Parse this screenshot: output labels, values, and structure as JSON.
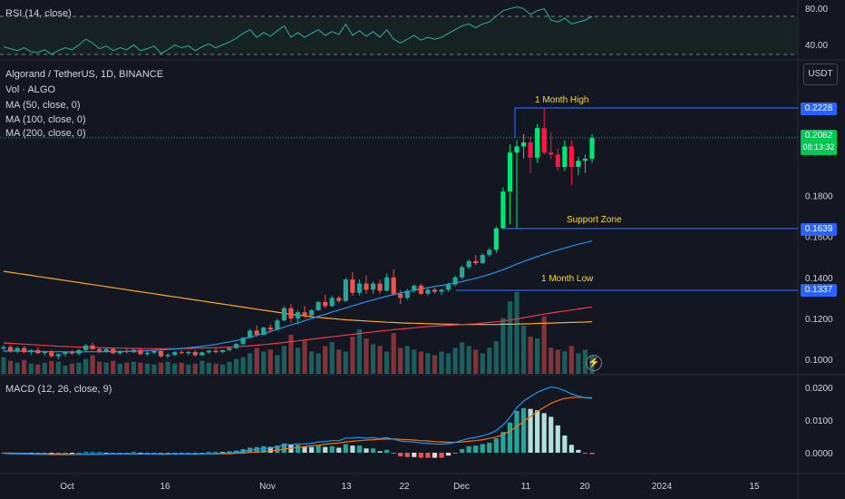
{
  "rsi": {
    "label": "RSI (14, close)",
    "ticks": [
      "80.00",
      "40.00"
    ]
  },
  "price": {
    "title": "Algorand / TetherUS, 1D, BINANCE",
    "legend": [
      "Vol · ALGO",
      "MA (50, close, 0)",
      "MA (100, close, 0)",
      "MA (200, close, 0)"
    ],
    "ticks": [
      "0.1800",
      "0.1600",
      "0.1400",
      "0.1200",
      "0.1000"
    ],
    "currency": "USDT",
    "annotations": [
      {
        "text": "1 Month High",
        "value": "0.2228",
        "price": 0.2228
      },
      {
        "text": "Support Zone",
        "value": "0.1639",
        "price": 0.1639
      },
      {
        "text": "1 Month Low",
        "value": "0.1337",
        "price": 0.1337
      }
    ],
    "current": {
      "value": "0.2082",
      "countdown": "08:13:32"
    }
  },
  "macd": {
    "label": "MACD (12, 26, close, 9)",
    "ticks": [
      "0.0200",
      "0.0100",
      "0.0000"
    ]
  },
  "time_axis": [
    "Oct",
    "16",
    "Nov",
    "13",
    "22",
    "Dec",
    "11",
    "20",
    "2024",
    "15"
  ],
  "colors": {
    "up": "#26a69a",
    "down": "#ef5350",
    "upBright": "#00e676",
    "downBright": "#ff1744",
    "tag": "#2962ff",
    "ma50": "#2196f3",
    "ma100": "#f23645",
    "ma200": "#ffa726",
    "macd": "#2196f3",
    "signal": "#ff6d00"
  },
  "chart_data": {
    "type": "candlestick",
    "ohlc_note": "approximate daily candles, ALGO/USDT",
    "candles": [
      [
        0.1052,
        0.107,
        0.104,
        0.106
      ],
      [
        0.106,
        0.1068,
        0.1032,
        0.104
      ],
      [
        0.104,
        0.1062,
        0.1028,
        0.1055
      ],
      [
        0.1055,
        0.1066,
        0.103,
        0.1035
      ],
      [
        0.1035,
        0.105,
        0.102,
        0.1045
      ],
      [
        0.1045,
        0.1058,
        0.1025,
        0.103
      ],
      [
        0.103,
        0.1042,
        0.1015,
        0.1038
      ],
      [
        0.1038,
        0.1046,
        0.1008,
        0.1015
      ],
      [
        0.1015,
        0.103,
        0.1,
        0.1025
      ],
      [
        0.1025,
        0.104,
        0.1012,
        0.1036
      ],
      [
        0.1036,
        0.1046,
        0.102,
        0.1028
      ],
      [
        0.1028,
        0.105,
        0.1018,
        0.1045
      ],
      [
        0.1045,
        0.1075,
        0.104,
        0.1068
      ],
      [
        0.1068,
        0.1082,
        0.1045,
        0.105
      ],
      [
        0.105,
        0.106,
        0.103,
        0.104
      ],
      [
        0.104,
        0.1055,
        0.103,
        0.105
      ],
      [
        0.105,
        0.1058,
        0.1025,
        0.103
      ],
      [
        0.103,
        0.1045,
        0.102,
        0.104
      ],
      [
        0.104,
        0.1052,
        0.1028,
        0.1035
      ],
      [
        0.1035,
        0.105,
        0.103,
        0.1046
      ],
      [
        0.1046,
        0.1052,
        0.102,
        0.1025
      ],
      [
        0.1025,
        0.1038,
        0.1015,
        0.1032
      ],
      [
        0.1032,
        0.1045,
        0.1025,
        0.104
      ],
      [
        0.104,
        0.1048,
        0.1008,
        0.1015
      ],
      [
        0.1015,
        0.103,
        0.1005,
        0.1022
      ],
      [
        0.1022,
        0.104,
        0.1015,
        0.1035
      ],
      [
        0.1035,
        0.1045,
        0.1025,
        0.103
      ],
      [
        0.103,
        0.1042,
        0.1018,
        0.1036
      ],
      [
        0.1036,
        0.1044,
        0.1012,
        0.102
      ],
      [
        0.102,
        0.1038,
        0.1015,
        0.1034
      ],
      [
        0.1034,
        0.1046,
        0.1026,
        0.1042
      ],
      [
        0.1042,
        0.1055,
        0.103,
        0.1035
      ],
      [
        0.1035,
        0.1048,
        0.103,
        0.1045
      ],
      [
        0.1045,
        0.106,
        0.1038,
        0.1055
      ],
      [
        0.1055,
        0.108,
        0.105,
        0.1075
      ],
      [
        0.1075,
        0.111,
        0.107,
        0.1105
      ],
      [
        0.1105,
        0.115,
        0.11,
        0.114
      ],
      [
        0.114,
        0.1165,
        0.111,
        0.112
      ],
      [
        0.112,
        0.116,
        0.1115,
        0.1155
      ],
      [
        0.1155,
        0.117,
        0.113,
        0.1145
      ],
      [
        0.1145,
        0.12,
        0.114,
        0.119
      ],
      [
        0.119,
        0.126,
        0.1185,
        0.125
      ],
      [
        0.125,
        0.127,
        0.118,
        0.12
      ],
      [
        0.12,
        0.124,
        0.117,
        0.123
      ],
      [
        0.123,
        0.126,
        0.12,
        0.1215
      ],
      [
        0.1215,
        0.1245,
        0.121,
        0.124
      ],
      [
        0.124,
        0.1285,
        0.1235,
        0.128
      ],
      [
        0.128,
        0.1315,
        0.125,
        0.126
      ],
      [
        0.126,
        0.131,
        0.1255,
        0.13
      ],
      [
        0.13,
        0.131,
        0.1275,
        0.1285
      ],
      [
        0.1285,
        0.14,
        0.128,
        0.139
      ],
      [
        0.139,
        0.1425,
        0.131,
        0.1325
      ],
      [
        0.1325,
        0.139,
        0.131,
        0.137
      ],
      [
        0.137,
        0.141,
        0.132,
        0.134
      ],
      [
        0.134,
        0.138,
        0.132,
        0.137
      ],
      [
        0.137,
        0.139,
        0.132,
        0.1335
      ],
      [
        0.1335,
        0.142,
        0.133,
        0.14
      ],
      [
        0.14,
        0.144,
        0.131,
        0.132
      ],
      [
        0.132,
        0.134,
        0.127,
        0.13
      ],
      [
        0.13,
        0.1345,
        0.129,
        0.1335
      ],
      [
        0.1335,
        0.1365,
        0.1325,
        0.136
      ],
      [
        0.136,
        0.137,
        0.1315,
        0.132
      ],
      [
        0.132,
        0.1345,
        0.131,
        0.134
      ],
      [
        0.134,
        0.135,
        0.132,
        0.133
      ],
      [
        0.133,
        0.1345,
        0.1315,
        0.134
      ],
      [
        0.134,
        0.1375,
        0.133,
        0.1365
      ],
      [
        0.1365,
        0.141,
        0.1355,
        0.14
      ],
      [
        0.14,
        0.146,
        0.139,
        0.145
      ],
      [
        0.145,
        0.149,
        0.144,
        0.148
      ],
      [
        0.148,
        0.151,
        0.146,
        0.147
      ],
      [
        0.147,
        0.152,
        0.1465,
        0.151
      ],
      [
        0.151,
        0.1545,
        0.15,
        0.1535
      ],
      [
        0.1535,
        0.165,
        0.152,
        0.164
      ],
      [
        0.164,
        0.184,
        0.1635,
        0.182
      ],
      [
        0.182,
        0.205,
        0.166,
        0.201
      ],
      [
        0.201,
        0.207,
        0.164,
        0.204
      ],
      [
        0.204,
        0.21,
        0.198,
        0.206
      ],
      [
        0.206,
        0.209,
        0.191,
        0.1985
      ],
      [
        0.1985,
        0.215,
        0.196,
        0.213
      ],
      [
        0.213,
        0.2228,
        0.2,
        0.201
      ],
      [
        0.201,
        0.211,
        0.198,
        0.2
      ],
      [
        0.2,
        0.203,
        0.192,
        0.194
      ],
      [
        0.194,
        0.207,
        0.192,
        0.204
      ],
      [
        0.204,
        0.207,
        0.185,
        0.194
      ],
      [
        0.194,
        0.199,
        0.19,
        0.197
      ],
      [
        0.197,
        0.2,
        0.191,
        0.198
      ],
      [
        0.198,
        0.21,
        0.196,
        0.2082
      ]
    ],
    "volume": [
      18,
      14,
      12,
      15,
      11,
      10,
      12,
      14,
      13,
      9,
      11,
      12,
      16,
      20,
      13,
      12,
      14,
      11,
      12,
      13,
      12,
      11,
      10,
      12,
      13,
      11,
      12,
      10,
      11,
      14,
      12,
      11,
      10,
      13,
      16,
      18,
      22,
      28,
      24,
      26,
      20,
      30,
      42,
      28,
      36,
      24,
      22,
      30,
      34,
      26,
      24,
      40,
      48,
      38,
      32,
      30,
      24,
      44,
      28,
      30,
      26,
      24,
      22,
      20,
      24,
      22,
      28,
      34,
      30,
      26,
      22,
      28,
      35,
      60,
      78,
      88,
      52,
      40,
      38,
      62,
      28,
      26,
      24,
      30,
      22,
      26,
      20
    ],
    "ma50": [
      0.104,
      0.104,
      0.104,
      0.1039,
      0.1039,
      0.1038,
      0.1038,
      0.1037,
      0.1037,
      0.1036,
      0.1036,
      0.1036,
      0.1037,
      0.1037,
      0.1037,
      0.1038,
      0.1038,
      0.1038,
      0.1039,
      0.104,
      0.1041,
      0.1042,
      0.1044,
      0.1046,
      0.1048,
      0.105,
      0.1053,
      0.1056,
      0.106,
      0.1064,
      0.1068,
      0.1073,
      0.1079,
      0.1085,
      0.1092,
      0.11,
      0.1108,
      0.1117,
      0.1126,
      0.1136,
      0.1146,
      0.1157,
      0.1168,
      0.1178,
      0.1189,
      0.1199,
      0.121,
      0.122,
      0.1231,
      0.1241,
      0.1251,
      0.1261,
      0.1271,
      0.1281,
      0.129,
      0.1299,
      0.1308,
      0.1316,
      0.1324,
      0.1331,
      0.1338,
      0.1344,
      0.135,
      0.1356,
      0.1361,
      0.1367,
      0.1373,
      0.138,
      0.1388,
      0.1396,
      0.1405,
      0.1415,
      0.1426,
      0.1438,
      0.1451,
      0.1465,
      0.1478,
      0.149,
      0.1502,
      0.1513,
      0.1524,
      0.1534,
      0.1544,
      0.1553,
      0.1562,
      0.157,
      0.1578
    ],
    "ma100": [
      0.108,
      0.1078,
      0.1076,
      0.1074,
      0.1072,
      0.107,
      0.1068,
      0.1066,
      0.1064,
      0.1063,
      0.1061,
      0.106,
      0.1059,
      0.1058,
      0.1057,
      0.1056,
      0.1055,
      0.1054,
      0.1054,
      0.1053,
      0.1053,
      0.1052,
      0.1052,
      0.1052,
      0.1052,
      0.1052,
      0.1053,
      0.1053,
      0.1054,
      0.1055,
      0.1056,
      0.1057,
      0.1058,
      0.106,
      0.1062,
      0.1064,
      0.1066,
      0.1069,
      0.1072,
      0.1075,
      0.1078,
      0.1082,
      0.1086,
      0.109,
      0.1094,
      0.1098,
      0.1102,
      0.1106,
      0.111,
      0.1114,
      0.1118,
      0.1122,
      0.1126,
      0.113,
      0.1134,
      0.1138,
      0.1141,
      0.1145,
      0.1148,
      0.1151,
      0.1154,
      0.1157,
      0.116,
      0.1162,
      0.1164,
      0.1166,
      0.1168,
      0.117,
      0.1172,
      0.1174,
      0.1177,
      0.118,
      0.1183,
      0.1187,
      0.1192,
      0.1197,
      0.1203,
      0.1209,
      0.1215,
      0.1221,
      0.1226,
      0.1231,
      0.1236,
      0.1241,
      0.1246,
      0.1251,
      0.1256
    ],
    "ma200": [
      0.143,
      0.1425,
      0.142,
      0.1415,
      0.141,
      0.1405,
      0.14,
      0.1395,
      0.139,
      0.1385,
      0.138,
      0.1375,
      0.137,
      0.1365,
      0.136,
      0.1355,
      0.135,
      0.1345,
      0.134,
      0.1335,
      0.133,
      0.1325,
      0.132,
      0.1315,
      0.131,
      0.1305,
      0.13,
      0.1295,
      0.129,
      0.1285,
      0.128,
      0.1275,
      0.127,
      0.1265,
      0.126,
      0.1255,
      0.125,
      0.1245,
      0.124,
      0.1235,
      0.123,
      0.1225,
      0.122,
      0.1216,
      0.1212,
      0.1208,
      0.1205,
      0.1202,
      0.1199,
      0.1196,
      0.1193,
      0.1191,
      0.1189,
      0.1187,
      0.1185,
      0.1183,
      0.1181,
      0.118,
      0.1178,
      0.1177,
      0.1176,
      0.1175,
      0.1174,
      0.1173,
      0.1172,
      0.1171,
      0.1171,
      0.117,
      0.117,
      0.117,
      0.117,
      0.117,
      0.117,
      0.1171,
      0.1171,
      0.1172,
      0.1173,
      0.1174,
      0.1175,
      0.1176,
      0.1177,
      0.1178,
      0.1179,
      0.118,
      0.1181,
      0.1182,
      0.1184
    ],
    "rsi": [
      48,
      46,
      44,
      47,
      43,
      42,
      45,
      40,
      44,
      47,
      45,
      50,
      56,
      52,
      46,
      49,
      44,
      47,
      45,
      50,
      44,
      46,
      49,
      41,
      45,
      50,
      47,
      49,
      44,
      48,
      51,
      47,
      50,
      53,
      57,
      62,
      66,
      58,
      63,
      59,
      65,
      70,
      58,
      63,
      58,
      62,
      66,
      60,
      64,
      61,
      72,
      60,
      65,
      59,
      64,
      58,
      66,
      56,
      52,
      56,
      60,
      55,
      58,
      56,
      58,
      62,
      66,
      70,
      72,
      68,
      72,
      74,
      80,
      86,
      88,
      90,
      88,
      82,
      86,
      88,
      76,
      74,
      78,
      72,
      74,
      76,
      80
    ],
    "macd": [
      -0.0002,
      -0.0003,
      -0.0003,
      -0.0004,
      -0.0004,
      -0.0005,
      -0.0005,
      -0.0006,
      -0.0006,
      -0.0006,
      -0.0006,
      -0.0005,
      -0.0004,
      -0.0004,
      -0.0004,
      -0.0004,
      -0.0004,
      -0.0004,
      -0.0004,
      -0.0003,
      -0.0004,
      -0.0004,
      -0.0004,
      -0.0005,
      -0.0005,
      -0.0004,
      -0.0004,
      -0.0004,
      -0.0005,
      -0.0004,
      -0.0003,
      -0.0003,
      -0.0002,
      -0.0001,
      0.0001,
      0.0004,
      0.0008,
      0.001,
      0.0013,
      0.0014,
      0.0018,
      0.0024,
      0.0025,
      0.0027,
      0.0027,
      0.0029,
      0.0033,
      0.0034,
      0.0037,
      0.0037,
      0.0045,
      0.0045,
      0.0047,
      0.0045,
      0.0046,
      0.0043,
      0.0046,
      0.0041,
      0.0036,
      0.0034,
      0.0033,
      0.003,
      0.0029,
      0.0027,
      0.0026,
      0.0028,
      0.0032,
      0.0038,
      0.0044,
      0.0047,
      0.0052,
      0.0058,
      0.0068,
      0.0085,
      0.0108,
      0.0138,
      0.0158,
      0.0172,
      0.0185,
      0.0194,
      0.0201,
      0.0198,
      0.019,
      0.018,
      0.0174,
      0.0168,
      0.0166
    ],
    "signal": [
      -0.0001,
      -0.0001,
      -0.0002,
      -0.0002,
      -0.0003,
      -0.0003,
      -0.0003,
      -0.0004,
      -0.0004,
      -0.0004,
      -0.0005,
      -0.0005,
      -0.0005,
      -0.0005,
      -0.0005,
      -0.0004,
      -0.0004,
      -0.0004,
      -0.0004,
      -0.0004,
      -0.0004,
      -0.0004,
      -0.0004,
      -0.0004,
      -0.0004,
      -0.0004,
      -0.0004,
      -0.0004,
      -0.0004,
      -0.0004,
      -0.0004,
      -0.0004,
      -0.0003,
      -0.0003,
      -0.0002,
      -0.0001,
      0.0001,
      0.0002,
      0.0004,
      0.0006,
      0.0008,
      0.0011,
      0.0014,
      0.0016,
      0.0019,
      0.0021,
      0.0023,
      0.0026,
      0.0028,
      0.003,
      0.0033,
      0.0035,
      0.0037,
      0.0039,
      0.004,
      0.0041,
      0.0042,
      0.0042,
      0.0041,
      0.004,
      0.0039,
      0.0037,
      0.0036,
      0.0034,
      0.0033,
      0.0032,
      0.0032,
      0.0033,
      0.0035,
      0.0037,
      0.004,
      0.0044,
      0.0048,
      0.0056,
      0.0066,
      0.008,
      0.0096,
      0.0111,
      0.0126,
      0.0139,
      0.0151,
      0.016,
      0.0166,
      0.0169,
      0.017,
      0.0169,
      0.0168
    ]
  }
}
